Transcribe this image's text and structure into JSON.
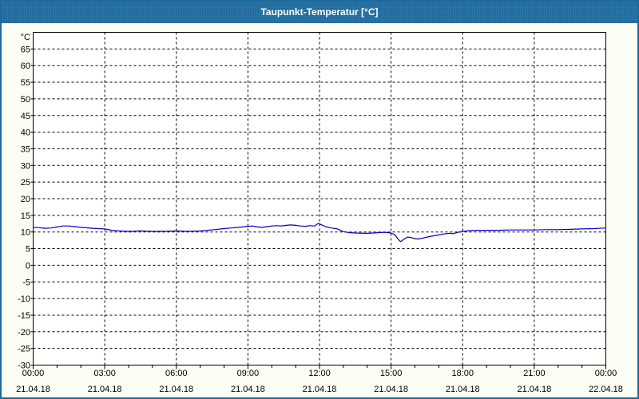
{
  "window": {
    "title": "Taupunkt-Temperatur [°C]"
  },
  "colors": {
    "title_bar": "#1E6B9E",
    "outer_border": "#1C6A9E",
    "background": "#FCFDF3",
    "plot_background": "#FFFFFF",
    "grid": "#000000",
    "axis_text": "#000000",
    "line": "#0000C8"
  },
  "chart_data": {
    "type": "line",
    "title": "Taupunkt-Temperatur [°C]",
    "y_unit_label": "°C",
    "ylabel": "",
    "xlabel": "",
    "ylim": [
      -30,
      70
    ],
    "y_tick_step": 5,
    "y_ticks": [
      -30,
      -25,
      -20,
      -15,
      -10,
      -5,
      0,
      5,
      10,
      15,
      20,
      25,
      30,
      35,
      40,
      45,
      50,
      55,
      60,
      65
    ],
    "xlim_hours": [
      0,
      24
    ],
    "x_major_step_hours": 3,
    "x_minor_step_hours": 1,
    "x_major_ticks": [
      {
        "hour": 0,
        "time": "00:00",
        "date": "21.04.18"
      },
      {
        "hour": 3,
        "time": "03:00",
        "date": "21.04.18"
      },
      {
        "hour": 6,
        "time": "06:00",
        "date": "21.04.18"
      },
      {
        "hour": 9,
        "time": "09:00",
        "date": "21.04.18"
      },
      {
        "hour": 12,
        "time": "12:00",
        "date": "21.04.18"
      },
      {
        "hour": 15,
        "time": "15:00",
        "date": "21.04.18"
      },
      {
        "hour": 18,
        "time": "18:00",
        "date": "21.04.18"
      },
      {
        "hour": 21,
        "time": "21:00",
        "date": "21.04.18"
      },
      {
        "hour": 24,
        "time": "00:00",
        "date": "22.04.18"
      }
    ],
    "grid": "dashed",
    "legend_position": "none",
    "series": [
      {
        "name": "Taupunkt-Temperatur",
        "color": "#0000C8",
        "points": [
          [
            0,
            11.4
          ],
          [
            0.25,
            11.3
          ],
          [
            0.5,
            11.1
          ],
          [
            0.75,
            11.2
          ],
          [
            1,
            11.5
          ],
          [
            1.25,
            11.8
          ],
          [
            1.5,
            11.8
          ],
          [
            1.75,
            11.6
          ],
          [
            2,
            11.4
          ],
          [
            2.5,
            11.1
          ],
          [
            3,
            10.9
          ],
          [
            3.3,
            10.5
          ],
          [
            3.6,
            10.3
          ],
          [
            4,
            10.2
          ],
          [
            4.5,
            10.3
          ],
          [
            5,
            10.2
          ],
          [
            5.5,
            10.2
          ],
          [
            6,
            10.3
          ],
          [
            6.5,
            10.2
          ],
          [
            7,
            10.3
          ],
          [
            7.3,
            10.5
          ],
          [
            7.6,
            10.7
          ],
          [
            8,
            11.0
          ],
          [
            8.3,
            11.2
          ],
          [
            8.6,
            11.4
          ],
          [
            9,
            11.7
          ],
          [
            9.2,
            11.8
          ],
          [
            9.4,
            11.5
          ],
          [
            9.6,
            11.4
          ],
          [
            9.8,
            11.6
          ],
          [
            10,
            11.8
          ],
          [
            10.2,
            11.9
          ],
          [
            10.4,
            11.8
          ],
          [
            10.6,
            12.0
          ],
          [
            10.8,
            12.1
          ],
          [
            11,
            12.0
          ],
          [
            11.2,
            11.8
          ],
          [
            11.4,
            11.7
          ],
          [
            11.6,
            11.9
          ],
          [
            11.8,
            11.8
          ],
          [
            11.95,
            12.6
          ],
          [
            12.1,
            12.1
          ],
          [
            12.25,
            11.6
          ],
          [
            12.5,
            11.2
          ],
          [
            12.75,
            10.9
          ],
          [
            13,
            10.1
          ],
          [
            13.25,
            9.8
          ],
          [
            13.5,
            9.7
          ],
          [
            14,
            9.6
          ],
          [
            14.25,
            9.7
          ],
          [
            14.5,
            9.8
          ],
          [
            14.75,
            9.9
          ],
          [
            15,
            9.7
          ],
          [
            15.15,
            9.2
          ],
          [
            15.3,
            7.8
          ],
          [
            15.4,
            7.1
          ],
          [
            15.55,
            7.9
          ],
          [
            15.7,
            8.5
          ],
          [
            15.85,
            8.3
          ],
          [
            16,
            8.0
          ],
          [
            16.15,
            7.9
          ],
          [
            16.35,
            8.2
          ],
          [
            16.6,
            8.6
          ],
          [
            16.9,
            9.0
          ],
          [
            17.2,
            9.4
          ],
          [
            17.45,
            9.6
          ],
          [
            17.6,
            9.5
          ],
          [
            17.8,
            9.9
          ],
          [
            18,
            10.2
          ],
          [
            18.3,
            10.4
          ],
          [
            18.6,
            10.5
          ],
          [
            19,
            10.5
          ],
          [
            19.5,
            10.5
          ],
          [
            20,
            10.6
          ],
          [
            20.5,
            10.6
          ],
          [
            21,
            10.6
          ],
          [
            21.5,
            10.7
          ],
          [
            22,
            10.7
          ],
          [
            22.5,
            10.8
          ],
          [
            23,
            10.9
          ],
          [
            23.5,
            11.0
          ],
          [
            24,
            11.2
          ]
        ]
      }
    ]
  }
}
